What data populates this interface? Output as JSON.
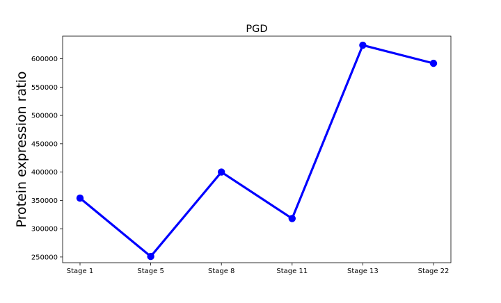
{
  "chart_data": {
    "type": "line",
    "title": "PGD",
    "xlabel": "",
    "ylabel": "Protein expression ratio",
    "categories": [
      "Stage 1",
      "Stage 5",
      "Stage 8",
      "Stage 11",
      "Stage 13",
      "Stage 22"
    ],
    "series": [
      {
        "values": [
          354000,
          251000,
          400000,
          318000,
          624000,
          592000
        ],
        "color": "#0000ff"
      }
    ],
    "ylim": [
      240000,
      640000
    ],
    "yticks": [
      250000,
      300000,
      350000,
      400000,
      450000,
      500000,
      550000,
      600000
    ],
    "ytick_labels": [
      "250000",
      "300000",
      "350000",
      "400000",
      "450000",
      "500000",
      "550000",
      "600000"
    ],
    "grid": false,
    "legend": "none"
  }
}
